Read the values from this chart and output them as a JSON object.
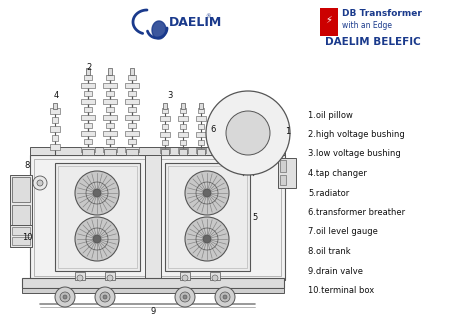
{
  "bg_color": "#ffffff",
  "daelim_logo_text": "DAELIM",
  "daelim_logo_color": "#1a3a8c",
  "brand_text1": "DB Transformer",
  "brand_text2": "with an Edge",
  "brand_text3": "DAELIM BELEFIC",
  "brand_color": "#1a3a8c",
  "brand_red": "#cc0000",
  "labels": [
    "1.oil pillow",
    "2.high voltage bushing",
    "3.low voltage bushing",
    "4.tap changer",
    "5.radiator",
    "6.transformer breather",
    "7.oil level gauge",
    "8.oil trank",
    "9.drain valve",
    "10.terminal box"
  ],
  "diagram_color": "#555555",
  "body_fill": "#f0f0f0",
  "panel_fill": "#e8e8e8",
  "fan_fill": "#d0d0d0",
  "text_color": "#111111",
  "number_color": "#111111"
}
